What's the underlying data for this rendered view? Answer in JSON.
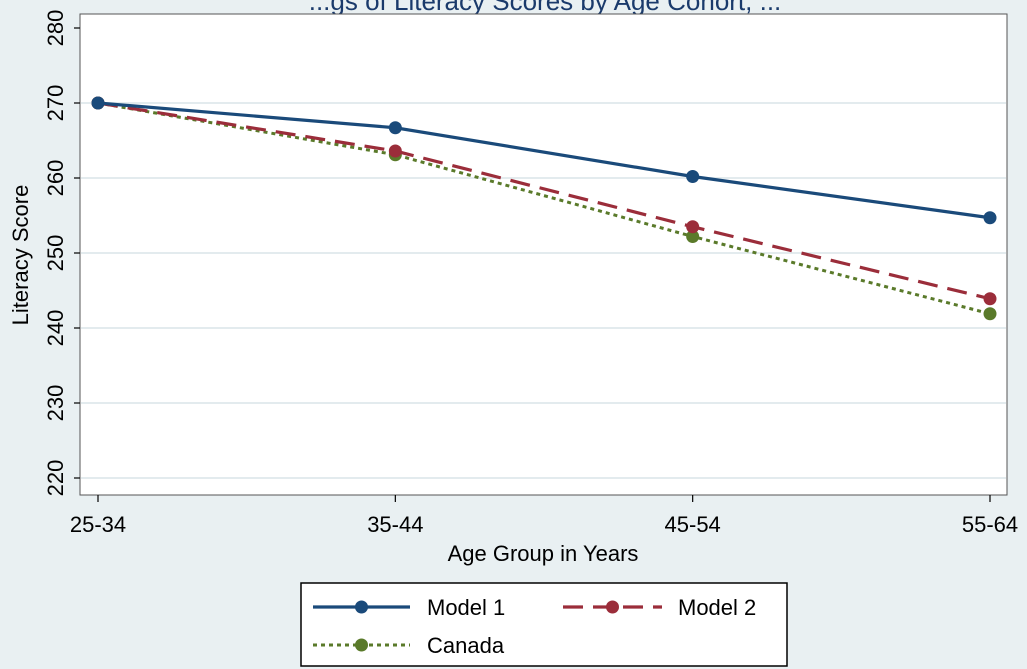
{
  "chart_data": {
    "type": "line",
    "title": "...gs of Literacy Scores by Age Cohort, ...",
    "xlabel": "Age Group in Years",
    "ylabel": "Literacy Score",
    "categories": [
      "25-34",
      "35-44",
      "45-54",
      "55-64"
    ],
    "yticks": [
      220,
      230,
      240,
      250,
      260,
      270,
      280
    ],
    "ylim": [
      218,
      282
    ],
    "grid": true,
    "legend_position": "bottom",
    "series": [
      {
        "name": "Model 1",
        "values": [
          270,
          266.7,
          260.2,
          254.7
        ],
        "color": "#1a4a7a",
        "dash": "solid"
      },
      {
        "name": "Model 2",
        "values": [
          270,
          263.6,
          253.5,
          243.9
        ],
        "color": "#9b2d3a",
        "dash": "dashed"
      },
      {
        "name": "Canada",
        "values": [
          270,
          263.1,
          252.2,
          241.9
        ],
        "color": "#5a7a2a",
        "dash": "dotted"
      }
    ]
  }
}
